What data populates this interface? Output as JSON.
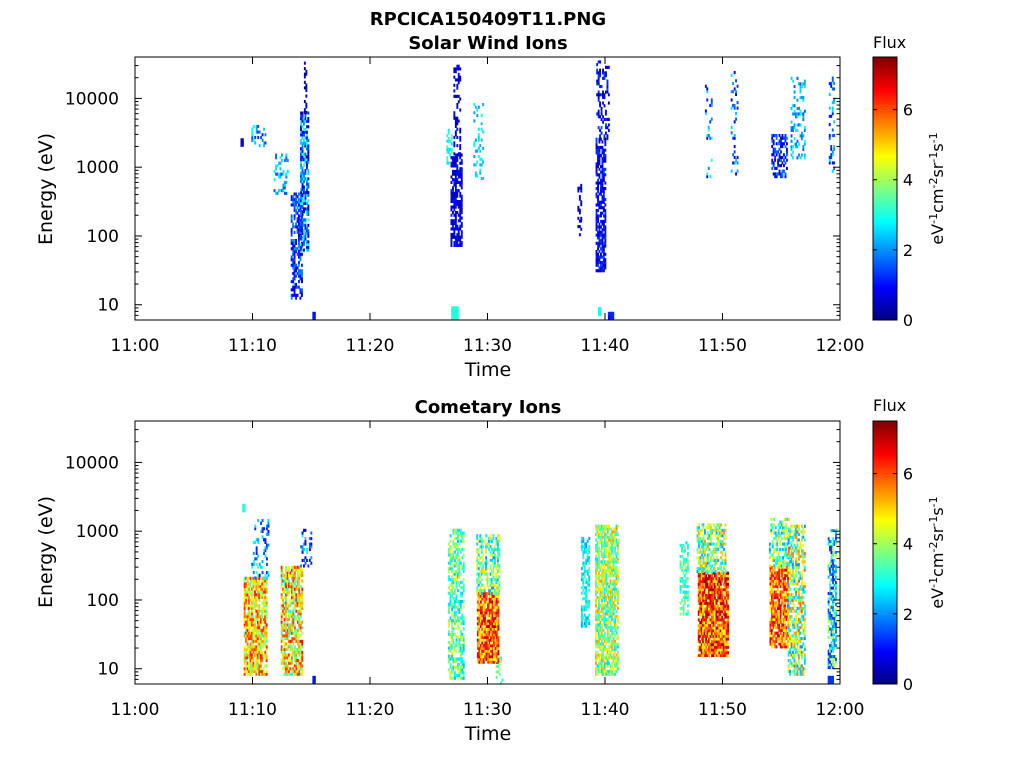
{
  "figure": {
    "title": "RPCICA150409T11.PNG"
  },
  "chart_data": [
    {
      "type": "heatmap",
      "title": "Solar Wind Ions",
      "xlabel": "Time",
      "ylabel": "Energy (eV)",
      "x_ticks": [
        "11:00",
        "11:10",
        "11:20",
        "11:30",
        "11:40",
        "11:50",
        "12:00"
      ],
      "xlim_minutes": [
        0,
        60
      ],
      "y_scale": "log",
      "y_ticks": [
        "10",
        "100",
        "1000",
        "10000"
      ],
      "ylim": [
        6,
        40000
      ],
      "colorbar": {
        "title": "Flux",
        "label": "eV-1cm-2sr-1s-1",
        "ticks": [
          "0",
          "2",
          "4",
          "6"
        ],
        "range": [
          0,
          7.5
        ],
        "colormap": "jet"
      },
      "blobs": [
        {
          "t": 9.1,
          "w": 0.25,
          "emin": 2000,
          "emax": 2600,
          "vmin": 0.4,
          "vmax": 0.8,
          "density": 1.0
        },
        {
          "t": 10.5,
          "w": 1.2,
          "emin": 1800,
          "emax": 4000,
          "vmin": 1.0,
          "vmax": 3.0,
          "density": 0.25
        },
        {
          "t": 12.4,
          "w": 1.2,
          "emin": 400,
          "emax": 1500,
          "vmin": 1.5,
          "vmax": 3.0,
          "density": 0.3
        },
        {
          "t": 13.7,
          "w": 0.9,
          "emin": 12,
          "emax": 400,
          "vmin": 0.3,
          "vmax": 2.2,
          "density": 0.55
        },
        {
          "t": 14.4,
          "w": 0.7,
          "emin": 60,
          "emax": 6000,
          "vmin": 0.3,
          "vmax": 3.2,
          "density": 0.7
        },
        {
          "t": 14.5,
          "w": 0.25,
          "emin": 6000,
          "emax": 35000,
          "vmin": 0.2,
          "vmax": 0.8,
          "density": 0.45
        },
        {
          "t": 15.2,
          "w": 0.2,
          "emin": 6,
          "emax": 7.5,
          "vmin": 1.0,
          "vmax": 1.2,
          "density": 1.0
        },
        {
          "t": 26.7,
          "w": 0.4,
          "emin": 1100,
          "emax": 3500,
          "vmin": 2.5,
          "vmax": 3.5,
          "density": 0.5
        },
        {
          "t": 27.3,
          "w": 0.9,
          "emin": 70,
          "emax": 1500,
          "vmin": 0.2,
          "vmax": 1.2,
          "density": 0.7
        },
        {
          "t": 27.4,
          "w": 0.6,
          "emin": 1500,
          "emax": 30000,
          "vmin": 0.2,
          "vmax": 1.0,
          "density": 0.35
        },
        {
          "t": 27.2,
          "w": 0.6,
          "emin": 6,
          "emax": 9,
          "vmin": 2.8,
          "vmax": 3.3,
          "density": 1.0
        },
        {
          "t": 29.2,
          "w": 0.8,
          "emin": 600,
          "emax": 8000,
          "vmin": 2.0,
          "vmax": 3.0,
          "density": 0.25
        },
        {
          "t": 37.8,
          "w": 0.3,
          "emin": 100,
          "emax": 600,
          "vmin": 0.3,
          "vmax": 1.0,
          "density": 0.35
        },
        {
          "t": 39.6,
          "w": 0.8,
          "emin": 30,
          "emax": 2500,
          "vmin": 0.2,
          "vmax": 1.5,
          "density": 0.7
        },
        {
          "t": 39.8,
          "w": 1.1,
          "emin": 2500,
          "emax": 35000,
          "vmin": 0.2,
          "vmax": 1.5,
          "density": 0.35
        },
        {
          "t": 39.5,
          "w": 0.2,
          "emin": 7,
          "emax": 9,
          "vmin": 2.8,
          "vmax": 3.2,
          "density": 1.0
        },
        {
          "t": 40.5,
          "w": 0.5,
          "emin": 6,
          "emax": 7.5,
          "vmin": 1.0,
          "vmax": 1.3,
          "density": 1.0
        },
        {
          "t": 48.8,
          "w": 0.6,
          "emin": 700,
          "emax": 15000,
          "vmin": 0.4,
          "vmax": 3.2,
          "density": 0.2
        },
        {
          "t": 51.0,
          "w": 0.6,
          "emin": 700,
          "emax": 25000,
          "vmin": 0.5,
          "vmax": 3.0,
          "density": 0.2
        },
        {
          "t": 54.8,
          "w": 1.3,
          "emin": 700,
          "emax": 3000,
          "vmin": 0.3,
          "vmax": 2.0,
          "density": 0.5
        },
        {
          "t": 56.4,
          "w": 1.2,
          "emin": 1200,
          "emax": 20000,
          "vmin": 1.5,
          "vmax": 3.0,
          "density": 0.25
        },
        {
          "t": 59.3,
          "w": 0.5,
          "emin": 700,
          "emax": 20000,
          "vmin": 0.8,
          "vmax": 2.8,
          "density": 0.3
        }
      ]
    },
    {
      "type": "heatmap",
      "title": "Cometary Ions",
      "xlabel": "Time",
      "ylabel": "Energy (eV)",
      "x_ticks": [
        "11:00",
        "11:10",
        "11:20",
        "11:30",
        "11:40",
        "11:50",
        "12:00"
      ],
      "xlim_minutes": [
        0,
        60
      ],
      "y_scale": "log",
      "y_ticks": [
        "10",
        "100",
        "1000",
        "10000"
      ],
      "ylim": [
        6,
        40000
      ],
      "colorbar": {
        "title": "Flux",
        "label": "eV-1cm-2sr-1s-1",
        "ticks": [
          "0",
          "2",
          "4",
          "6"
        ],
        "range": [
          0,
          7.5
        ],
        "colormap": "jet"
      },
      "blobs": [
        {
          "t": 9.2,
          "w": 0.15,
          "emin": 1900,
          "emax": 2500,
          "vmin": 3.0,
          "vmax": 3.4,
          "density": 1.0
        },
        {
          "t": 10.2,
          "w": 1.9,
          "emin": 8,
          "emax": 200,
          "vmin": 3.5,
          "vmax": 6.5,
          "density": 0.8
        },
        {
          "t": 10.6,
          "w": 1.4,
          "emin": 200,
          "emax": 1500,
          "vmin": 0.8,
          "vmax": 3.5,
          "density": 0.25
        },
        {
          "t": 13.3,
          "w": 1.8,
          "emin": 8,
          "emax": 300,
          "vmin": 3.0,
          "vmax": 6.5,
          "density": 0.7
        },
        {
          "t": 14.5,
          "w": 0.9,
          "emin": 300,
          "emax": 1000,
          "vmin": 0.5,
          "vmax": 3.0,
          "density": 0.3
        },
        {
          "t": 15.2,
          "w": 0.2,
          "emin": 6,
          "emax": 7.5,
          "vmin": 1.0,
          "vmax": 1.2,
          "density": 1.0
        },
        {
          "t": 27.3,
          "w": 1.3,
          "emin": 7,
          "emax": 1000,
          "vmin": 2.3,
          "vmax": 4.5,
          "density": 0.6
        },
        {
          "t": 30.0,
          "w": 1.8,
          "emin": 12,
          "emax": 120,
          "vmin": 4.5,
          "vmax": 7.2,
          "density": 0.9
        },
        {
          "t": 30.0,
          "w": 1.9,
          "emin": 120,
          "emax": 900,
          "vmin": 2.0,
          "vmax": 5.0,
          "density": 0.6
        },
        {
          "t": 31.0,
          "w": 0.6,
          "emin": 6,
          "emax": 15,
          "vmin": 3.0,
          "vmax": 4.0,
          "density": 0.4
        },
        {
          "t": 38.3,
          "w": 0.7,
          "emin": 40,
          "emax": 800,
          "vmin": 2.0,
          "vmax": 3.5,
          "density": 0.55
        },
        {
          "t": 40.1,
          "w": 1.9,
          "emin": 8,
          "emax": 1200,
          "vmin": 2.5,
          "vmax": 5.5,
          "density": 0.75
        },
        {
          "t": 46.7,
          "w": 0.7,
          "emin": 60,
          "emax": 700,
          "vmin": 2.5,
          "vmax": 4.0,
          "density": 0.5
        },
        {
          "t": 49.2,
          "w": 2.6,
          "emin": 15,
          "emax": 250,
          "vmin": 4.5,
          "vmax": 7.4,
          "density": 0.9
        },
        {
          "t": 49.0,
          "w": 2.4,
          "emin": 250,
          "emax": 1200,
          "vmin": 2.0,
          "vmax": 5.5,
          "density": 0.6
        },
        {
          "t": 54.8,
          "w": 1.6,
          "emin": 20,
          "emax": 300,
          "vmin": 4.5,
          "vmax": 7.0,
          "density": 0.85
        },
        {
          "t": 54.8,
          "w": 1.7,
          "emin": 300,
          "emax": 1500,
          "vmin": 2.0,
          "vmax": 5.0,
          "density": 0.55
        },
        {
          "t": 56.3,
          "w": 1.5,
          "emin": 8,
          "emax": 1200,
          "vmin": 2.0,
          "vmax": 6.0,
          "density": 0.6
        },
        {
          "t": 59.3,
          "w": 0.7,
          "emin": 10,
          "emax": 1000,
          "vmin": 1.0,
          "vmax": 4.5,
          "density": 0.6
        },
        {
          "t": 59.2,
          "w": 0.5,
          "emin": 6,
          "emax": 7.5,
          "vmin": 1.2,
          "vmax": 1.4,
          "density": 1.0
        }
      ]
    }
  ]
}
